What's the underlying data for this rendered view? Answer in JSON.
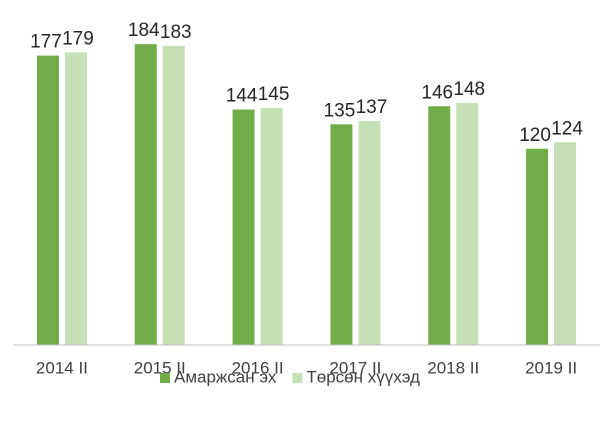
{
  "chart_data": {
    "type": "bar",
    "categories": [
      "2014 II",
      "2015 II",
      "2016 II",
      "2017 II",
      "2018 II",
      "2019 II"
    ],
    "series": [
      {
        "name": "Амаржсан эх",
        "color": "#70ad47",
        "values": [
          177,
          184,
          144,
          135,
          146,
          120
        ]
      },
      {
        "name": "Төрсөн хүүхэд",
        "color": "#c5e0b4",
        "values": [
          179,
          183,
          145,
          137,
          148,
          124
        ]
      }
    ],
    "ylim": [
      0,
      200
    ],
    "legend": "bottom"
  }
}
